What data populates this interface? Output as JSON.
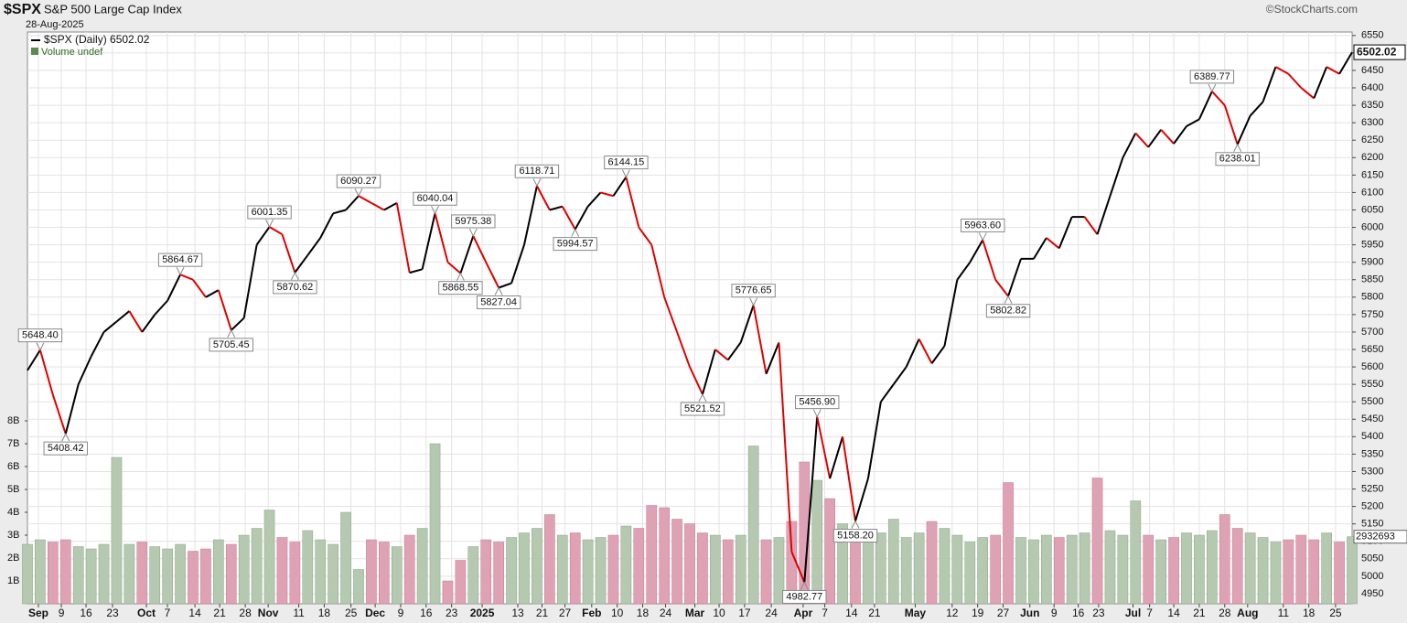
{
  "chart_data": {
    "type": "price-volume",
    "symbol": "$SPX",
    "title": "S&P 500 Large Cap Index",
    "date": "28-Aug-2025",
    "credit": "©StockCharts.com",
    "legend_volume": "Volume undef",
    "series": [
      {
        "name": "$SPX (Daily) 6502.02",
        "up_color": "#000000",
        "down_color": "#e00000",
        "values": [
          5590,
          5648.4,
          5520,
          5408.42,
          5550,
          5630,
          5700,
          5730,
          5760,
          5700,
          5750,
          5790,
          5864.67,
          5850,
          5800,
          5820,
          5705.45,
          5740,
          5950,
          6001.35,
          5980,
          5870.62,
          5920,
          5970,
          6040,
          6050,
          6090.27,
          6070,
          6050,
          6070,
          5870,
          5880,
          6040.04,
          5900,
          5868.55,
          5975.38,
          5900,
          5827.04,
          5840,
          5950,
          6118.71,
          6050,
          6060,
          5994.57,
          6060,
          6100,
          6090,
          6144.15,
          6000,
          5950,
          5800,
          5700,
          5600,
          5521.52,
          5650,
          5620,
          5670,
          5776.65,
          5580,
          5670,
          5070,
          4982.77,
          5456.9,
          5280,
          5400,
          5158.2,
          5280,
          5500,
          5550,
          5600,
          5680,
          5610,
          5660,
          5850,
          5900,
          5963.6,
          5850,
          5802.82,
          5910,
          5910,
          5970,
          5940,
          6030,
          6030,
          5980,
          6090,
          6200,
          6270,
          6230,
          6280,
          6240,
          6290,
          6310,
          6389.77,
          6350,
          6238.01,
          6320,
          6360,
          6460,
          6440,
          6400,
          6370,
          6460,
          6440,
          6502.02
        ],
        "value_labels": [
          null,
          "5648.40",
          null,
          "5408.42",
          null,
          null,
          null,
          null,
          null,
          null,
          null,
          null,
          "5864.67",
          null,
          null,
          null,
          "5705.45",
          null,
          null,
          "6001.35",
          null,
          "5870.62",
          null,
          null,
          null,
          null,
          "6090.27",
          null,
          null,
          null,
          null,
          null,
          "6040.04",
          null,
          "5868.55",
          "5975.38",
          null,
          "5827.04",
          null,
          null,
          "6118.71",
          null,
          null,
          "5994.57",
          null,
          null,
          null,
          "6144.15",
          null,
          null,
          null,
          null,
          null,
          "5521.52",
          null,
          null,
          null,
          "5776.65",
          null,
          null,
          null,
          "4982.77",
          "5456.90",
          null,
          null,
          "5158.20",
          null,
          null,
          null,
          null,
          null,
          null,
          null,
          null,
          null,
          "5963.60",
          null,
          "5802.82",
          null,
          null,
          null,
          null,
          null,
          null,
          null,
          null,
          null,
          null,
          null,
          null,
          null,
          null,
          null,
          "6389.77",
          null,
          "6238.01",
          null,
          null,
          null,
          null,
          null,
          null,
          null,
          null,
          "6502.02"
        ]
      },
      {
        "name": "Volume",
        "axis": "y2",
        "up_color": "#b5c8b0",
        "down_color": "#dfa2b4",
        "last_label": "2932693",
        "values": [
          2.6,
          2.8,
          2.7,
          2.8,
          2.5,
          2.4,
          2.6,
          6.4,
          2.6,
          2.7,
          2.5,
          2.4,
          2.6,
          2.3,
          2.4,
          2.8,
          2.6,
          3.0,
          3.3,
          4.1,
          2.9,
          2.7,
          3.2,
          2.8,
          2.6,
          4.0,
          1.5,
          2.8,
          2.7,
          2.5,
          3.0,
          3.3,
          7.0,
          1.0,
          1.9,
          2.5,
          2.8,
          2.7,
          2.9,
          3.1,
          3.3,
          3.9,
          3.0,
          3.1,
          2.8,
          2.9,
          3.0,
          3.4,
          3.3,
          4.3,
          4.2,
          3.7,
          3.5,
          3.1,
          3.0,
          2.8,
          3.0,
          6.9,
          2.8,
          2.9,
          3.6,
          6.2,
          5.4,
          4.6,
          3.5,
          3.2,
          2.8,
          3.1,
          3.7,
          2.9,
          3.1,
          3.6,
          3.3,
          3.0,
          2.7,
          2.9,
          3.0,
          5.3,
          2.9,
          2.8,
          3.0,
          2.9,
          3.0,
          3.1,
          5.5,
          3.2,
          3.0,
          4.5,
          3.0,
          2.8,
          2.9,
          3.1,
          3.0,
          3.2,
          3.9,
          3.3,
          3.1,
          2.9,
          2.7,
          2.8,
          3.0,
          2.8,
          3.1,
          2.7,
          2.932693
        ]
      }
    ],
    "ylim": [
      4921,
      6560
    ],
    "yticks": [
      4950,
      5000,
      5050,
      5100,
      5150,
      5200,
      5250,
      5300,
      5350,
      5400,
      5450,
      5500,
      5550,
      5600,
      5650,
      5700,
      5750,
      5800,
      5850,
      5900,
      5950,
      6000,
      6050,
      6100,
      6150,
      6200,
      6250,
      6300,
      6350,
      6400,
      6450,
      6500,
      6550
    ],
    "y2lim": [
      0,
      25
    ],
    "y2ticks": [
      {
        "value": 1,
        "label": "1B"
      },
      {
        "value": 2,
        "label": "2B"
      },
      {
        "value": 3,
        "label": "3B"
      },
      {
        "value": 4,
        "label": "4B"
      },
      {
        "value": 5,
        "label": "5B"
      },
      {
        "value": 6,
        "label": "6B"
      },
      {
        "value": 7,
        "label": "7B"
      },
      {
        "value": 8,
        "label": "8B"
      }
    ],
    "xticks": [
      {
        "value": 0.86,
        "label": "Sep"
      },
      {
        "value": 2.66,
        "label": "9"
      },
      {
        "value": 4.6,
        "label": "16"
      },
      {
        "value": 6.68,
        "label": "23"
      },
      {
        "value": 9.34,
        "label": "Oct"
      },
      {
        "value": 10.99,
        "label": "7"
      },
      {
        "value": 13.15,
        "label": "14"
      },
      {
        "value": 15.09,
        "label": "21"
      },
      {
        "value": 17.1,
        "label": "28"
      },
      {
        "value": 18.9,
        "label": "Nov"
      },
      {
        "value": 21.3,
        "label": "11"
      },
      {
        "value": 23.3,
        "label": "18"
      },
      {
        "value": 25.4,
        "label": "25"
      },
      {
        "value": 27.3,
        "label": "Dec"
      },
      {
        "value": 29.3,
        "label": "9"
      },
      {
        "value": 31.3,
        "label": "16"
      },
      {
        "value": 33.3,
        "label": "23"
      },
      {
        "value": 35.7,
        "label": "2025"
      },
      {
        "value": 38.5,
        "label": "13"
      },
      {
        "value": 40.4,
        "label": "21"
      },
      {
        "value": 42.2,
        "label": "27"
      },
      {
        "value": 44.3,
        "label": "Feb"
      },
      {
        "value": 46.3,
        "label": "10"
      },
      {
        "value": 48.3,
        "label": "18"
      },
      {
        "value": 50.1,
        "label": "24"
      },
      {
        "value": 52.4,
        "label": "Mar"
      },
      {
        "value": 54.3,
        "label": "10"
      },
      {
        "value": 56.3,
        "label": "17"
      },
      {
        "value": 58.4,
        "label": "24"
      },
      {
        "value": 60.9,
        "label": "Apr"
      },
      {
        "value": 62.6,
        "label": "7"
      },
      {
        "value": 64.7,
        "label": "14"
      },
      {
        "value": 66.5,
        "label": "21"
      },
      {
        "value": 69.7,
        "label": "May"
      },
      {
        "value": 72.6,
        "label": "12"
      },
      {
        "value": 74.6,
        "label": "19"
      },
      {
        "value": 76.6,
        "label": "27"
      },
      {
        "value": 78.7,
        "label": "Jun"
      },
      {
        "value": 80.6,
        "label": "9"
      },
      {
        "value": 82.5,
        "label": "16"
      },
      {
        "value": 84.1,
        "label": "23"
      },
      {
        "value": 86.8,
        "label": "Jul"
      },
      {
        "value": 88.1,
        "label": "7"
      },
      {
        "value": 90.0,
        "label": "14"
      },
      {
        "value": 92.0,
        "label": "21"
      },
      {
        "value": 94.0,
        "label": "28"
      },
      {
        "value": 95.8,
        "label": "Aug"
      },
      {
        "value": 98.6,
        "label": "11"
      },
      {
        "value": 100.6,
        "label": "18"
      },
      {
        "value": 102.7,
        "label": "25"
      }
    ],
    "grid": true
  }
}
